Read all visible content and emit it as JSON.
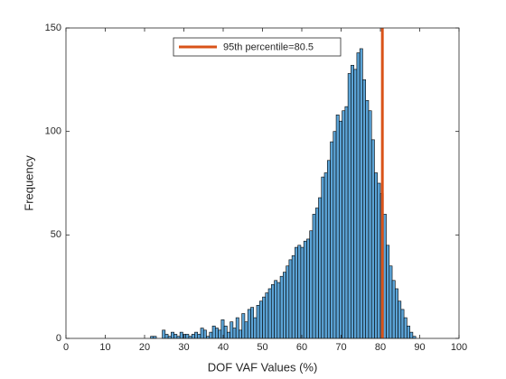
{
  "chart_data": {
    "type": "histogram",
    "xlabel": "DOF VAF Values (%)",
    "ylabel": "Frequency",
    "color": "#5ba3d6",
    "edgecolor": "#000000",
    "bins": [
      21.5,
      22.25,
      23,
      23.75,
      24.5,
      25.25,
      26,
      26.75,
      27.5,
      28.25,
      29,
      29.75,
      30.5,
      31.25,
      32,
      32.75,
      33.5,
      34.25,
      35,
      35.75,
      36.5,
      37.25,
      38,
      38.75,
      39.5,
      40.25,
      41,
      41.75,
      42.5,
      43.25,
      44,
      44.75,
      45.5,
      46.25,
      47,
      47.75,
      48.5,
      49.25,
      50,
      50.75,
      51.5,
      52.25,
      53,
      53.75,
      54.5,
      55.25,
      56,
      56.75,
      57.5,
      58.25,
      59,
      59.75,
      60.5,
      61.25,
      62,
      62.75,
      63.5,
      64.25,
      65,
      65.75,
      66.5,
      67.25,
      68,
      68.75,
      69.5,
      70.25,
      71,
      71.75,
      72.5,
      73.25,
      74,
      74.75,
      75.5,
      76.25,
      77,
      77.75,
      78.5,
      79.25,
      80,
      80.75,
      81.5,
      82.25,
      83,
      83.75,
      84.5,
      85.25,
      86,
      86.75,
      87.5,
      88.25,
      89
    ],
    "counts": [
      1,
      1,
      0,
      0,
      4,
      2,
      1,
      3,
      2,
      1,
      3,
      2,
      2,
      1,
      2,
      3,
      2,
      5,
      4,
      1,
      3,
      6,
      5,
      4,
      9,
      6,
      3,
      8,
      5,
      10,
      4,
      12,
      8,
      14,
      15,
      10,
      16,
      18,
      20,
      22,
      24,
      26,
      28,
      27,
      30,
      32,
      35,
      38,
      40,
      44,
      45,
      44,
      47,
      48,
      52,
      60,
      63,
      68,
      78,
      80,
      86,
      95,
      100,
      108,
      105,
      110,
      112,
      128,
      132,
      130,
      138,
      140,
      125,
      115,
      110,
      96,
      80,
      75,
      70,
      60,
      45,
      35,
      28,
      24,
      18,
      14,
      10,
      6,
      3,
      1
    ],
    "percentile_line": {
      "name": "95th percentile=80.5",
      "x": 80.5,
      "color": "#d95319"
    },
    "legend": "top",
    "xlim": [
      0,
      100
    ],
    "xticks": [
      0,
      10,
      20,
      30,
      40,
      50,
      60,
      70,
      80,
      90,
      100
    ],
    "ylim": [
      0,
      150
    ],
    "yticks": [
      0,
      50,
      100,
      150
    ],
    "grid": false
  }
}
